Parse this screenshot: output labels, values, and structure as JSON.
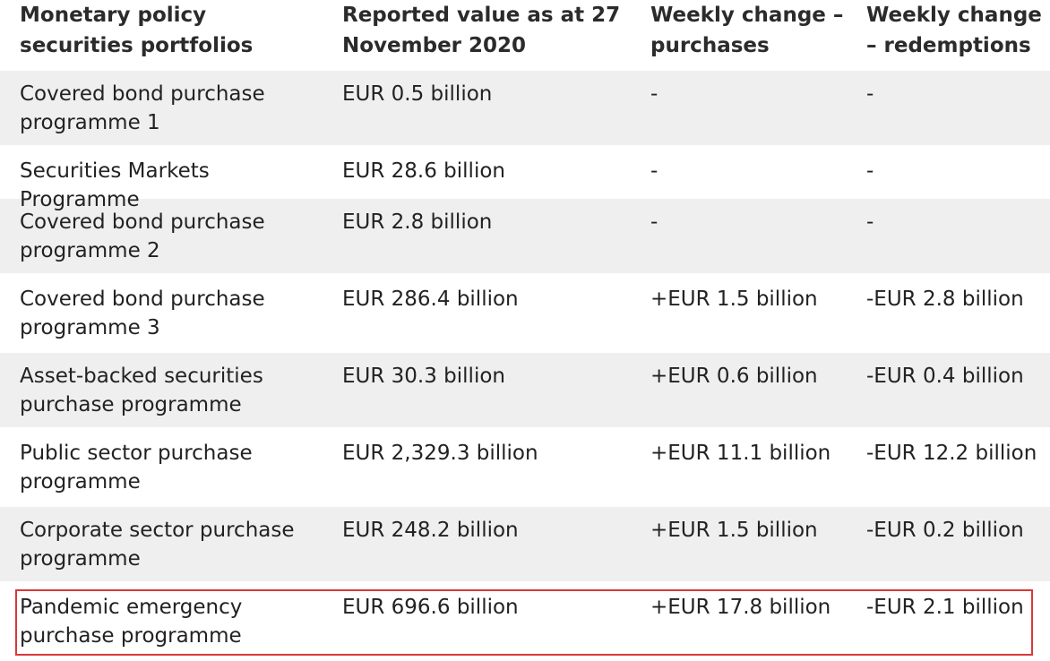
{
  "table": {
    "headers": [
      "Monetary policy securities portfolios",
      "Reported value as at 27 November 2020",
      "Weekly change – purchases",
      "Weekly change – redemptions"
    ],
    "rows": [
      {
        "portfolio": "Covered bond purchase programme 1",
        "value": "EUR 0.5 billion",
        "purchases": "-",
        "redemptions": "-"
      },
      {
        "portfolio": "Securities Markets Programme",
        "value": "EUR 28.6 billion",
        "purchases": "-",
        "redemptions": "-"
      },
      {
        "portfolio": "Covered bond purchase programme 2",
        "value": "EUR 2.8 billion",
        "purchases": "-",
        "redemptions": "-"
      },
      {
        "portfolio": "Covered bond purchase programme 3",
        "value": "EUR 286.4 billion",
        "purchases": "+EUR 1.5 billion",
        "redemptions": "-EUR 2.8 billion"
      },
      {
        "portfolio": "Asset-backed securities purchase programme",
        "value": "EUR 30.3 billion",
        "purchases": "+EUR 0.6 billion",
        "redemptions": "-EUR 0.4 billion"
      },
      {
        "portfolio": "Public sector purchase programme",
        "value": "EUR 2,329.3 billion",
        "purchases": "+EUR 11.1 billion",
        "redemptions": "-EUR 12.2 billion"
      },
      {
        "portfolio": "Corporate sector purchase programme",
        "value": "EUR 248.2 billion",
        "purchases": "+EUR 1.5 billion",
        "redemptions": "-EUR 0.2 billion"
      },
      {
        "portfolio": "Pandemic emergency purchase programme",
        "value": "EUR 696.6 billion",
        "purchases": "+EUR 17.8 billion",
        "redemptions": "-EUR 2.1 billion"
      }
    ],
    "highlight_color": "#d9383a",
    "row_shade_color": "#efefef"
  }
}
